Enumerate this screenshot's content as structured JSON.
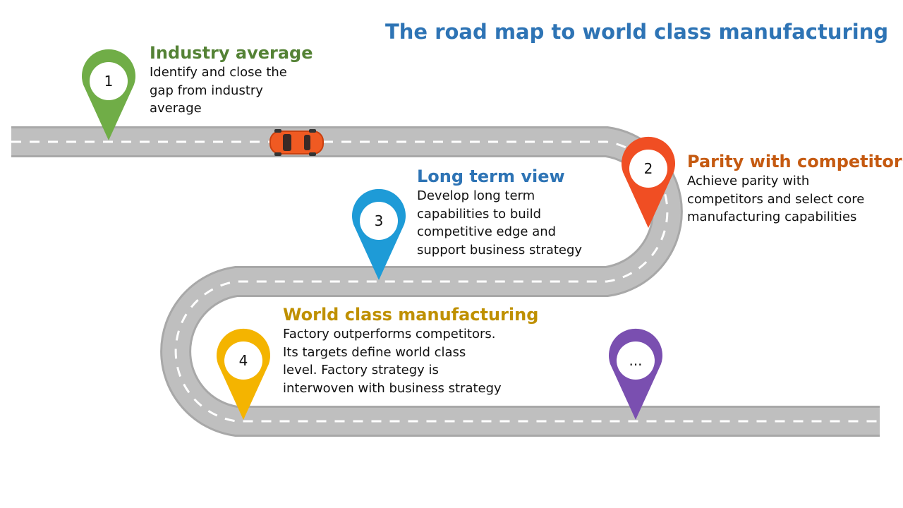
{
  "title": "The road map to world class manufacturing",
  "colors": {
    "road": "#bfbfbf",
    "road_edge": "#a8a8a8",
    "dash": "#ffffff",
    "title": "#2e74b5",
    "car": "#f05a22"
  },
  "steps": [
    {
      "marker": "1",
      "heading": "Industry average",
      "color": "#70ad47",
      "lines": [
        "Identify and close the",
        "gap from industry",
        "average"
      ]
    },
    {
      "marker": "2",
      "heading": "Parity with competitors",
      "color": "#c55a11",
      "lines": [
        "Achieve parity with",
        "competitors and select core",
        "manufacturing capabilities"
      ]
    },
    {
      "marker": "3",
      "heading": "Long term view",
      "color": "#2e74b5",
      "lines": [
        "Develop long term",
        "capabilities to build",
        "competitive edge and",
        "support business strategy"
      ]
    },
    {
      "marker": "4",
      "heading": "World class manufacturing",
      "color": "#bf9000",
      "lines": [
        "Factory outperforms competitors.",
        "Its targets define world class",
        "level. Factory strategy is",
        "interwoven with business strategy"
      ]
    },
    {
      "marker": "...",
      "heading": "",
      "color": "#7030a0",
      "lines": []
    }
  ],
  "pins": [
    {
      "marker": "1",
      "fill": "#70ad47"
    },
    {
      "marker": "2",
      "fill": "#f04e23"
    },
    {
      "marker": "3",
      "fill": "#1e9bd7"
    },
    {
      "marker": "4",
      "fill": "#f4b400"
    },
    {
      "marker": "...",
      "fill": "#7a4fb0"
    }
  ]
}
